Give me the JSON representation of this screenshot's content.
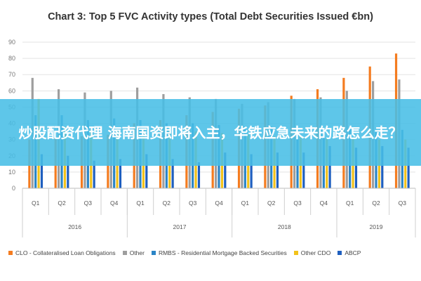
{
  "chart_data": {
    "type": "bar",
    "title": "Chart 3: Top 5 FVC Activity types (Total Debt Securities Issued €bn)",
    "xlabel": "",
    "ylabel": "",
    "ylim": [
      0,
      90
    ],
    "yticks": [
      "0",
      "10",
      "20",
      "30",
      "40",
      "50",
      "60",
      "70",
      "80",
      "90"
    ],
    "grid": true,
    "legend_position": "bottom",
    "categories": [
      "Q1",
      "Q2",
      "Q3",
      "Q4",
      "Q1",
      "Q2",
      "Q3",
      "Q4",
      "Q1",
      "Q2",
      "Q3",
      "Q4",
      "Q1",
      "Q2",
      "Q3"
    ],
    "groups": [
      {
        "label": "2016",
        "count": 4
      },
      {
        "label": "2017",
        "count": 4
      },
      {
        "label": "2018",
        "count": 4
      },
      {
        "label": "2019",
        "count": 3
      }
    ],
    "series": [
      {
        "name": "CLO - Collateralised Loan Obligations",
        "color": "#f47c20",
        "values": [
          30,
          31,
          32,
          33,
          40,
          42,
          45,
          47,
          49,
          51,
          57,
          61,
          68,
          75,
          83
        ]
      },
      {
        "name": "Other",
        "color": "#9e9e9e",
        "values": [
          68,
          61,
          59,
          60,
          62,
          58,
          56,
          55,
          52,
          53,
          55,
          56,
          60,
          66,
          67
        ]
      },
      {
        "name": "RMBS - Residential Mortgage Backed Securities",
        "color": "#2b85c6",
        "values": [
          45,
          45,
          42,
          43,
          42,
          40,
          40,
          39,
          38,
          38,
          37,
          37,
          37,
          36,
          36
        ]
      },
      {
        "name": "Other CDO",
        "color": "#f2c21b",
        "values": [
          55,
          38,
          36,
          36,
          37,
          36,
          35,
          34,
          33,
          32,
          32,
          31,
          31,
          30,
          30
        ]
      },
      {
        "name": "ABCP",
        "color": "#1f5fbf",
        "values": [
          21,
          20,
          17,
          18,
          21,
          18,
          16,
          22,
          21,
          22,
          22,
          26,
          25,
          26,
          25
        ]
      }
    ]
  },
  "overlay": {
    "text": "炒股配资代理 海南国资即将入主，华铁应急未来的路怎么走？",
    "color": "#48bee6"
  }
}
